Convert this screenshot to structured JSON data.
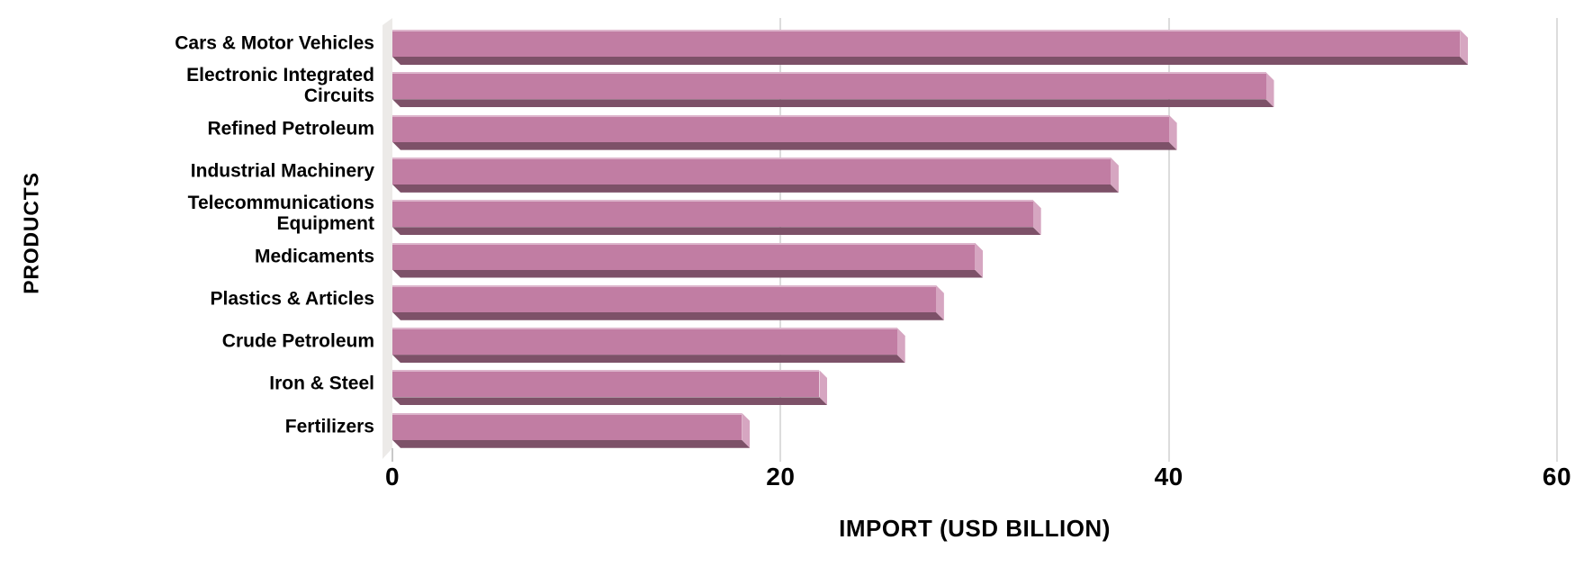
{
  "chart_data": {
    "type": "bar",
    "orientation": "horizontal",
    "categories": [
      "Cars & Motor Vehicles",
      "Electronic Integrated\nCircuits",
      "Refined Petroleum",
      "Industrial Machinery",
      "Telecommunications\nEquipment",
      "Medicaments",
      "Plastics & Articles",
      "Crude Petroleum",
      "Iron & Steel",
      "Fertilizers"
    ],
    "values": [
      55,
      45,
      40,
      37,
      33,
      30,
      28,
      26,
      22,
      18
    ],
    "xlabel": "IMPORT (USD BILLION)",
    "ylabel": "PRODUCTS",
    "xlim": [
      0,
      60
    ],
    "x_ticks": [
      0,
      20,
      40,
      60
    ],
    "grid": "vertical-light-gray",
    "legend": "none",
    "style": "3d-extruded-bars"
  },
  "colors": {
    "background": "#ffffff",
    "bar_face": "#c17da3",
    "bar_shadow": "#7d5168",
    "bar_cap": "#d6a6c1",
    "bar_highlight": "#ddb5cc",
    "gridline": "#dcdcdc",
    "tick": "#c9c9c9",
    "wall": "#eceae8",
    "text": "#000000"
  }
}
